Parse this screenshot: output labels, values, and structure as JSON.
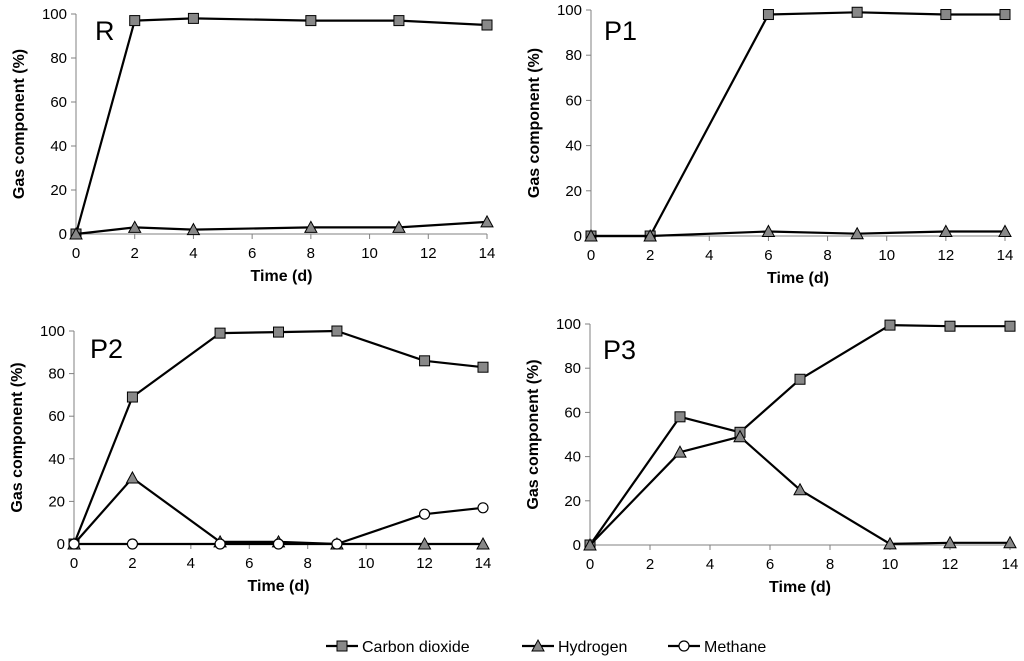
{
  "chart_data": [
    {
      "type": "line",
      "panel_label": "R",
      "xlabel": "Time (d)",
      "ylabel": "Gas component (%)",
      "xlim": [
        0,
        14
      ],
      "ylim": [
        0,
        100
      ],
      "xticks": [
        0,
        2,
        4,
        6,
        8,
        10,
        12,
        14
      ],
      "yticks": [
        0,
        20,
        40,
        60,
        80,
        100
      ],
      "grid": false,
      "series": [
        {
          "name": "Carbon dioxide",
          "marker": "square",
          "x": [
            0,
            2,
            4,
            8,
            11,
            14
          ],
          "y": [
            0,
            97,
            98,
            97,
            97,
            95
          ]
        },
        {
          "name": "Hydrogen",
          "marker": "triangle",
          "x": [
            0,
            2,
            4,
            8,
            11,
            14
          ],
          "y": [
            0,
            3,
            2,
            3,
            3,
            5.5
          ]
        }
      ]
    },
    {
      "type": "line",
      "panel_label": "P1",
      "xlabel": "Time (d)",
      "ylabel": "Gas component (%)",
      "xlim": [
        0,
        14
      ],
      "ylim": [
        0,
        100
      ],
      "xticks": [
        0,
        2,
        4,
        6,
        8,
        10,
        12,
        14
      ],
      "yticks": [
        0,
        20,
        40,
        60,
        80,
        100
      ],
      "grid": false,
      "series": [
        {
          "name": "Carbon dioxide",
          "marker": "square",
          "x": [
            0,
            2,
            6,
            9,
            12,
            14
          ],
          "y": [
            0,
            0,
            98,
            99,
            98,
            98
          ]
        },
        {
          "name": "Hydrogen",
          "marker": "triangle",
          "x": [
            0,
            2,
            6,
            9,
            12,
            14
          ],
          "y": [
            0,
            0,
            2,
            1,
            2,
            2
          ]
        }
      ]
    },
    {
      "type": "line",
      "panel_label": "P2",
      "xlabel": "Time (d)",
      "ylabel": "Gas component (%)",
      "xlim": [
        0,
        14
      ],
      "ylim": [
        0,
        100
      ],
      "xticks": [
        0,
        2,
        4,
        6,
        8,
        10,
        12,
        14
      ],
      "yticks": [
        0,
        20,
        40,
        60,
        80,
        100
      ],
      "grid": false,
      "series": [
        {
          "name": "Carbon dioxide",
          "marker": "square",
          "x": [
            0,
            2,
            5,
            7,
            9,
            12,
            14
          ],
          "y": [
            0,
            69,
            99,
            99.5,
            100,
            86,
            83
          ]
        },
        {
          "name": "Hydrogen",
          "marker": "triangle",
          "x": [
            0,
            2,
            5,
            7,
            9,
            12,
            14
          ],
          "y": [
            0,
            31,
            1,
            1,
            0,
            0,
            0
          ]
        },
        {
          "name": "Methane",
          "marker": "circle",
          "x": [
            0,
            2,
            5,
            7,
            9,
            12,
            14
          ],
          "y": [
            0,
            0,
            0,
            0,
            0,
            14,
            17
          ]
        }
      ]
    },
    {
      "type": "line",
      "panel_label": "P3",
      "xlabel": "Time (d)",
      "ylabel": "Gas component (%)",
      "xlim": [
        0,
        14
      ],
      "ylim": [
        0,
        100
      ],
      "xticks": [
        0,
        2,
        4,
        6,
        8,
        10,
        12,
        14
      ],
      "yticks": [
        0,
        20,
        40,
        60,
        80,
        100
      ],
      "grid": false,
      "series": [
        {
          "name": "Carbon dioxide",
          "marker": "square",
          "x": [
            0,
            3,
            5,
            7,
            10,
            12,
            14
          ],
          "y": [
            0,
            58,
            51,
            75,
            99.5,
            99,
            99
          ]
        },
        {
          "name": "Hydrogen",
          "marker": "triangle",
          "x": [
            0,
            3,
            5,
            7,
            10,
            12,
            14
          ],
          "y": [
            0,
            42,
            49,
            25,
            0.5,
            1,
            1
          ]
        }
      ]
    }
  ],
  "legend": {
    "placement": "bottom-center",
    "entries": [
      {
        "name": "Carbon dioxide",
        "marker": "square"
      },
      {
        "name": "Hydrogen",
        "marker": "triangle"
      },
      {
        "name": "Methane",
        "marker": "circle"
      }
    ]
  },
  "colors": {
    "line": "#000000",
    "marker_fill": "#888888",
    "marker_stroke": "#000000"
  }
}
